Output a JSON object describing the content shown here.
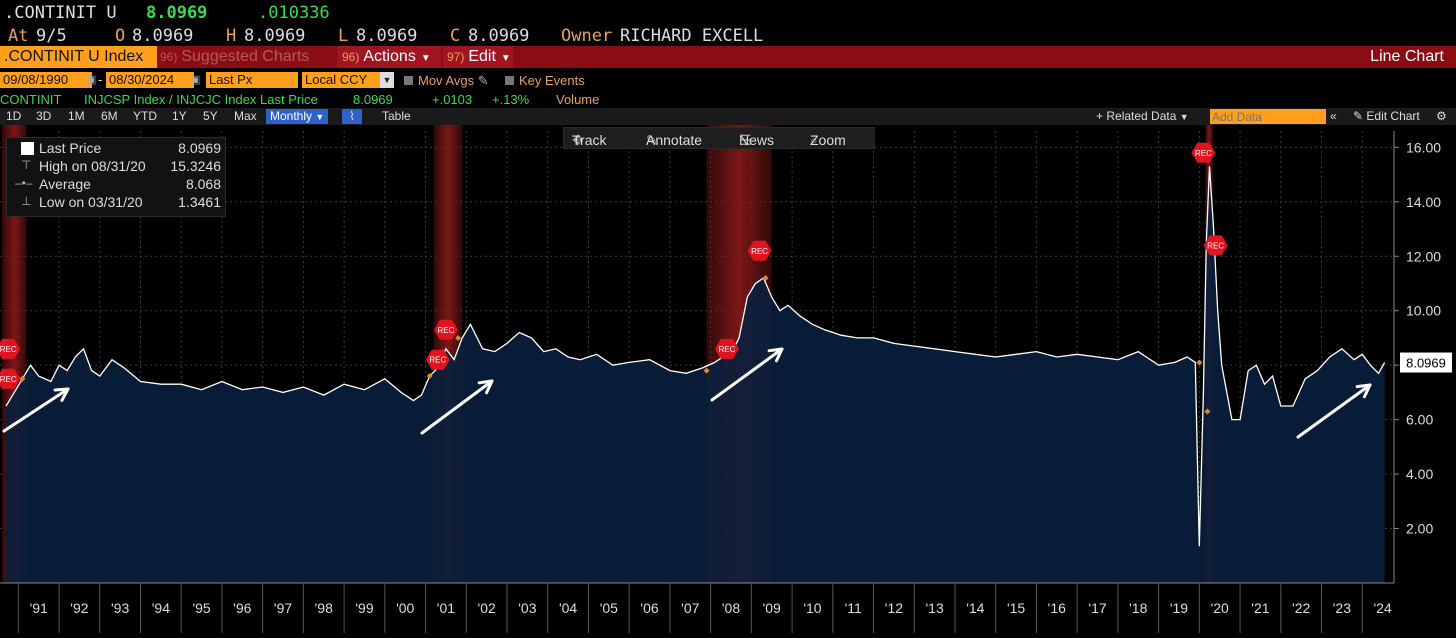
{
  "header": {
    "ticker": ".CONTINIT U",
    "last": "8.0969",
    "change": ".010336",
    "at_label": "At",
    "at_date": "9/5",
    "o_label": "O",
    "o_value": "8.0969",
    "h_label": "H",
    "h_value": "8.0969",
    "l_label": "L",
    "l_value": "8.0969",
    "c_label": "C",
    "c_value": "8.0969",
    "owner_label": "Owner",
    "owner_name": "RICHARD EXCELL"
  },
  "menubar": {
    "index_name": ".CONTINIT U Index",
    "suggested_num": "96)",
    "suggested_label": "Suggested Charts",
    "actions_num": "96)",
    "actions_label": "Actions",
    "edit_num": "97)",
    "edit_label": "Edit",
    "chart_type": "Line Chart"
  },
  "controls": {
    "start_date": "09/08/1990",
    "end_date": "08/30/2024",
    "field": "Last Px",
    "currency": "Local CCY",
    "mov_avgs": "Mov Avgs",
    "key_events": "Key Events"
  },
  "legend_line": {
    "security": "CONTINIT",
    "description": "INJCSP Index / INJCJC Index Last Price",
    "last": "8.0969",
    "change": "+.0103",
    "pct": "+.13%",
    "volume": "Volume"
  },
  "toolbar": {
    "periods": [
      "1D",
      "3D",
      "1M",
      "6M",
      "YTD",
      "1Y",
      "5Y",
      "Max"
    ],
    "frequency": "Monthly",
    "table": "Table",
    "related": "Related Data",
    "add_data_placeholder": "Add Data",
    "edit_chart": "Edit Chart"
  },
  "float_tools": {
    "track": "Track",
    "annotate": "Annotate",
    "news": "News",
    "zoom": "Zoom"
  },
  "legend_box": {
    "last_label": "Last Price",
    "last_value": "8.0969",
    "high_label": "High on 08/31/20",
    "high_value": "15.3246",
    "avg_label": "Average",
    "avg_value": "8.068",
    "low_label": "Low on 03/31/20",
    "low_value": "1.3461"
  },
  "colors": {
    "line": "#ffffff",
    "fill": "#0a1f3d",
    "recession": "#8b1a1a",
    "accent_orange": "#ff9f1c",
    "green": "#3adb4c",
    "menu_red": "#8b0d14"
  },
  "chart_data": {
    "type": "area",
    "x_labels": [
      "'91",
      "'92",
      "'93",
      "'94",
      "'95",
      "'96",
      "'97",
      "'98",
      "'99",
      "'00",
      "'01",
      "'02",
      "'03",
      "'04",
      "'05",
      "'06",
      "'07",
      "'08",
      "'09",
      "'10",
      "'11",
      "'12",
      "'13",
      "'14",
      "'15",
      "'16",
      "'17",
      "'18",
      "'19",
      "'20",
      "'21",
      "'22",
      "'23",
      "'24"
    ],
    "y_ticks": [
      "2.00",
      "4.00",
      "6.00",
      "8.00",
      "10.00",
      "12.00",
      "14.00",
      "16.00"
    ],
    "ylim": [
      0,
      16.6
    ],
    "last_value_label": "8.0969",
    "event_label": "REC",
    "series": [
      {
        "x": [
          1990.7,
          1990.9,
          1991.1,
          1991.3,
          1991.5,
          1991.8,
          1992.0,
          1992.2,
          1992.4,
          1992.6,
          1992.8,
          1993.0,
          1993.3,
          1993.6,
          1994.0,
          1994.5,
          1995.0,
          1995.5,
          1996.0,
          1996.5,
          1997.0,
          1997.5,
          1998.0,
          1998.5,
          1999.0,
          1999.5,
          2000.0,
          2000.4,
          2000.7,
          2000.9,
          2001.1,
          2001.3,
          2001.5,
          2001.7,
          2001.9,
          2002.1,
          2002.4,
          2002.7,
          2003.0,
          2003.3,
          2003.6,
          2003.9,
          2004.2,
          2004.5,
          2004.8,
          2005.2,
          2005.6,
          2006.0,
          2006.5,
          2007.0,
          2007.4,
          2007.8,
          2008.1,
          2008.3,
          2008.5,
          2008.7,
          2008.9,
          2009.1,
          2009.3,
          2009.5,
          2009.7,
          2009.9,
          2010.2,
          2010.5,
          2010.8,
          2011.2,
          2011.6,
          2012.0,
          2012.5,
          2013.0,
          2013.5,
          2014.0,
          2014.5,
          2015.0,
          2015.5,
          2016.0,
          2016.5,
          2017.0,
          2017.5,
          2018.0,
          2018.5,
          2019.0,
          2019.4,
          2019.7,
          2019.9,
          2020.0,
          2020.1,
          2020.17,
          2020.25,
          2020.35,
          2020.45,
          2020.55,
          2020.65,
          2020.8,
          2021.0,
          2021.2,
          2021.4,
          2021.6,
          2021.8,
          2022.0,
          2022.3,
          2022.6,
          2022.9,
          2023.2,
          2023.5,
          2023.8,
          2024.0,
          2024.2,
          2024.4,
          2024.55
        ],
        "y": [
          6.5,
          7.0,
          7.5,
          8.0,
          7.6,
          7.4,
          8.0,
          7.8,
          8.3,
          8.6,
          7.8,
          7.6,
          8.2,
          7.9,
          7.4,
          7.3,
          7.3,
          7.1,
          7.4,
          7.1,
          7.2,
          7.0,
          7.2,
          6.9,
          7.3,
          7.1,
          7.5,
          7.0,
          6.7,
          6.9,
          7.6,
          7.9,
          8.6,
          8.2,
          9.0,
          9.5,
          8.6,
          8.5,
          8.8,
          9.2,
          9.0,
          8.5,
          8.6,
          8.3,
          8.2,
          8.4,
          8.0,
          8.1,
          8.2,
          7.8,
          7.7,
          7.9,
          8.1,
          8.3,
          8.4,
          9.0,
          10.5,
          11.0,
          11.2,
          10.5,
          10.0,
          10.2,
          9.8,
          9.5,
          9.3,
          9.1,
          9.0,
          9.0,
          8.8,
          8.7,
          8.6,
          8.5,
          8.4,
          8.3,
          8.4,
          8.5,
          8.3,
          8.4,
          8.3,
          8.2,
          8.5,
          8.0,
          8.1,
          8.3,
          8.1,
          1.35,
          7.0,
          12.5,
          15.3,
          13.0,
          10.0,
          8.0,
          7.2,
          6.0,
          6.0,
          7.8,
          8.0,
          7.3,
          7.6,
          6.5,
          6.5,
          7.5,
          7.8,
          8.3,
          8.6,
          8.2,
          8.4,
          8.0,
          7.7,
          8.0969
        ]
      }
    ],
    "recessions": [
      [
        1990.6,
        1991.2
      ],
      [
        2001.2,
        2001.9
      ],
      [
        2007.9,
        2009.5
      ],
      [
        2020.15,
        2020.33
      ]
    ]
  }
}
